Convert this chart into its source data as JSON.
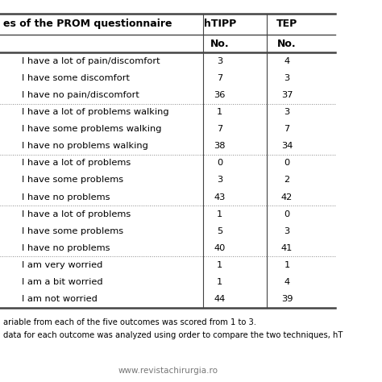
{
  "title_left": "es of the PROM questionnaire",
  "col_headers": [
    "hTIPP",
    "TEP"
  ],
  "col_subheaders": [
    "No.",
    "No."
  ],
  "rows": [
    {
      "label": "I have a lot of pain/discomfort",
      "htipp": "3",
      "tep": "4",
      "group_start": true
    },
    {
      "label": "I have some discomfort",
      "htipp": "7",
      "tep": "3",
      "group_start": false
    },
    {
      "label": "I have no pain/discomfort",
      "htipp": "36",
      "tep": "37",
      "group_start": false
    },
    {
      "label": "I have a lot of problems walking",
      "htipp": "1",
      "tep": "3",
      "group_start": true
    },
    {
      "label": "I have some problems walking",
      "htipp": "7",
      "tep": "7",
      "group_start": false
    },
    {
      "label": "I have no problems walking",
      "htipp": "38",
      "tep": "34",
      "group_start": false
    },
    {
      "label": "I have a lot of problems",
      "htipp": "0",
      "tep": "0",
      "group_start": true
    },
    {
      "label": "I have some problems",
      "htipp": "3",
      "tep": "2",
      "group_start": false
    },
    {
      "label": "I have no problems",
      "htipp": "43",
      "tep": "42",
      "group_start": false
    },
    {
      "label": "I have a lot of problems",
      "htipp": "1",
      "tep": "0",
      "group_start": true
    },
    {
      "label": "I have some problems",
      "htipp": "5",
      "tep": "3",
      "group_start": false
    },
    {
      "label": "I have no problems",
      "htipp": "40",
      "tep": "41",
      "group_start": false
    },
    {
      "label": "I am very worried",
      "htipp": "1",
      "tep": "1",
      "group_start": true
    },
    {
      "label": "I am a bit worried",
      "htipp": "1",
      "tep": "4",
      "group_start": false
    },
    {
      "label": "I am not worried",
      "htipp": "44",
      "tep": "39",
      "group_start": false
    }
  ],
  "footnote1": "ariable from each of the five outcomes was scored from 1 to 3.",
  "footnote2": "data for each outcome was analyzed using order to compare the two techniques, hT",
  "website": "www.revistachirurgia.ro",
  "bg_color": "#ffffff",
  "border_color": "#444444",
  "dotted_color": "#888888",
  "text_color": "#000000",
  "header_fontsize": 9.0,
  "row_fontsize": 8.2,
  "footnote_fontsize": 7.2,
  "website_fontsize": 7.5
}
